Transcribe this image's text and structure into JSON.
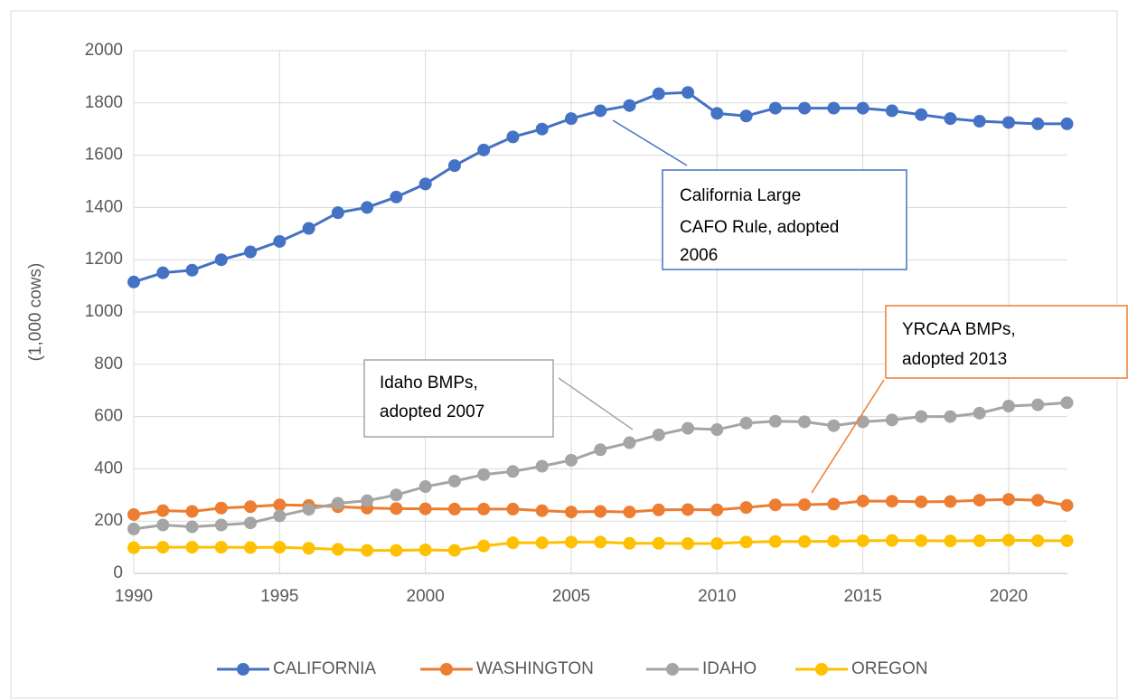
{
  "chart_data": {
    "type": "line",
    "ylabel": "(1,000 cows)",
    "x": [
      1990,
      1991,
      1992,
      1993,
      1994,
      1995,
      1996,
      1997,
      1998,
      1999,
      2000,
      2001,
      2002,
      2003,
      2004,
      2005,
      2006,
      2007,
      2008,
      2009,
      2010,
      2011,
      2012,
      2013,
      2014,
      2015,
      2016,
      2017,
      2018,
      2019,
      2020,
      2021,
      2022
    ],
    "series": [
      {
        "name": "CALIFORNIA",
        "color": "#4472c4",
        "values": [
          1115,
          1150,
          1160,
          1200,
          1230,
          1270,
          1320,
          1380,
          1400,
          1440,
          1490,
          1560,
          1620,
          1670,
          1700,
          1740,
          1770,
          1790,
          1835,
          1840,
          1760,
          1750,
          1780,
          1780,
          1780,
          1780,
          1770,
          1755,
          1740,
          1730,
          1725,
          1720,
          1720
        ]
      },
      {
        "name": "WASHINGTON",
        "color": "#ed7d31",
        "values": [
          225,
          240,
          237,
          250,
          255,
          262,
          260,
          255,
          250,
          248,
          247,
          246,
          246,
          246,
          240,
          235,
          237,
          235,
          243,
          244,
          243,
          252,
          262,
          263,
          265,
          277,
          276,
          274,
          275,
          280,
          283,
          280,
          260
        ]
      },
      {
        "name": "IDAHO",
        "color": "#a5a5a5",
        "values": [
          170,
          185,
          178,
          185,
          193,
          220,
          245,
          268,
          278,
          300,
          332,
          353,
          378,
          390,
          410,
          433,
          473,
          500,
          530,
          555,
          550,
          575,
          582,
          580,
          565,
          580,
          587,
          600,
          600,
          613,
          640,
          645,
          653
        ]
      },
      {
        "name": "OREGON",
        "color": "#ffc000",
        "values": [
          98,
          100,
          100,
          100,
          99,
          100,
          96,
          92,
          88,
          88,
          90,
          88,
          105,
          117,
          117,
          120,
          120,
          115,
          115,
          114,
          114,
          120,
          122,
          122,
          123,
          125,
          126,
          125,
          124,
          125,
          127,
          125,
          125
        ]
      }
    ],
    "xlim": [
      1990,
      2022
    ],
    "xticks": [
      1990,
      1995,
      2000,
      2005,
      2010,
      2015,
      2020
    ],
    "ylim": [
      0,
      2000
    ],
    "yticks": [
      0,
      200,
      400,
      600,
      800,
      1000,
      1200,
      1400,
      1600,
      1800,
      2000
    ],
    "grid": true,
    "legend": "bottom",
    "annotations": [
      {
        "lines": [
          "California Large",
          "CAFO Rule, adopted",
          "2006"
        ],
        "color": "#4472c4"
      },
      {
        "lines": [
          "Idaho BMPs,",
          "adopted 2007"
        ],
        "color": "#a5a5a5"
      },
      {
        "lines": [
          "YRCAA BMPs,",
          "adopted 2013"
        ],
        "color": "#ed7d31"
      }
    ]
  }
}
